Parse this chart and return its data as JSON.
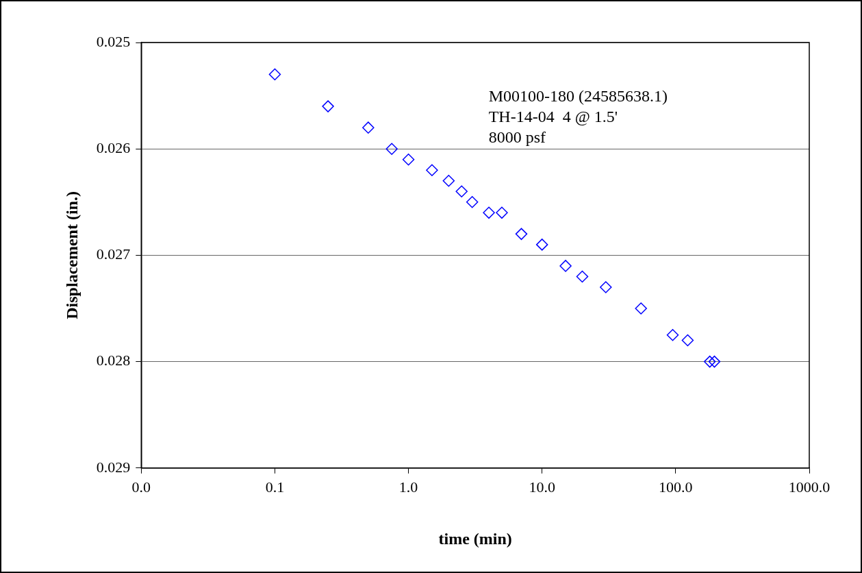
{
  "chart_data": {
    "type": "scatter",
    "xlabel": "time (min)",
    "ylabel": "Displacement (in.)",
    "annotations": [
      "M00100-180 (24585638.1)",
      "TH-14-04  4 @ 1.5'",
      "8000 psf"
    ],
    "x": [
      0.1,
      0.25,
      0.5,
      0.75,
      1,
      1.5,
      2,
      2.5,
      3,
      4,
      5,
      7,
      10,
      15,
      20,
      30,
      55,
      95,
      123,
      180,
      195
    ],
    "series": [
      {
        "color": "#0000ff",
        "values": [
          0.0253,
          0.0256,
          0.0258,
          0.026,
          0.0261,
          0.0262,
          0.0263,
          0.0264,
          0.0265,
          0.0266,
          0.0266,
          0.0268,
          0.0269,
          0.0271,
          0.0272,
          0.0273,
          0.0275,
          0.02775,
          0.0278,
          0.028,
          0.028
        ]
      }
    ],
    "log": "x",
    "xlim": [
      0.01,
      1000
    ],
    "xticks": [
      {
        "value": 0.01,
        "label": "0.0"
      },
      0.1,
      {
        "value": 1,
        "label": "1.0"
      },
      {
        "value": 10,
        "label": "10.0"
      },
      {
        "value": 100,
        "label": "100.0"
      },
      {
        "value": 1000,
        "label": "1000.0"
      }
    ],
    "ylim": [
      0.029,
      0.025
    ],
    "yticks": [
      0.025,
      0.026,
      0.027,
      0.028,
      0.029
    ],
    "grid": "y",
    "legend": false,
    "marker": "diamond"
  }
}
